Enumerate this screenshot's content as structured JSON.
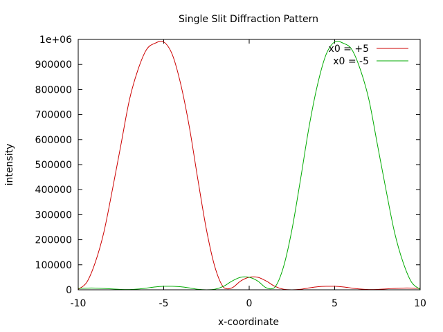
{
  "chart_data": {
    "type": "line",
    "title": "Single Slit Diffraction Pattern",
    "xlabel": "x-coordinate",
    "ylabel": "intensity",
    "xlim": [
      -10,
      10
    ],
    "ylim": [
      0,
      1000000
    ],
    "x_ticks": [
      -10,
      -5,
      0,
      5,
      10
    ],
    "y_ticks": [
      0,
      100000,
      200000,
      300000,
      400000,
      500000,
      600000,
      700000,
      800000,
      900000,
      1000000
    ],
    "x_tick_labels": [
      "-10",
      "-5",
      "0",
      "5",
      "10"
    ],
    "y_tick_labels": [
      "0",
      "100000",
      "200000",
      "300000",
      "400000",
      "500000",
      "600000",
      "700000",
      "800000",
      "900000",
      "1e+06"
    ],
    "grid": false,
    "legend_position": "top-right",
    "x": [
      -10,
      -9.5,
      -9,
      -8.5,
      -8,
      -7.5,
      -7,
      -6.5,
      -6,
      -5.5,
      -5,
      -4.5,
      -4,
      -3.5,
      -3,
      -2.5,
      -2,
      -1.5,
      -1,
      -0.5,
      0,
      0.5,
      1,
      1.5,
      2,
      2.5,
      3,
      3.5,
      4,
      4.5,
      5,
      5.5,
      6,
      6.5,
      7,
      7.5,
      8,
      8.5,
      9,
      9.5,
      10
    ],
    "series": [
      {
        "name": "x0 = +5",
        "color": "#cc0000",
        "values": [
          2000,
          30000,
          110000,
          230000,
          400000,
          580000,
          760000,
          880000,
          960000,
          985000,
          990000,
          940000,
          820000,
          650000,
          440000,
          240000,
          90000,
          10000,
          8000,
          35000,
          50000,
          50000,
          35000,
          14000,
          2500,
          0,
          2000,
          7500,
          12000,
          14000,
          14000,
          11500,
          7000,
          3000,
          1000,
          1500,
          3500,
          5500,
          7000,
          7000,
          6000
        ]
      },
      {
        "name": "x0 = -5",
        "color": "#00aa00",
        "values": [
          6000,
          7000,
          7000,
          5500,
          3500,
          1500,
          1000,
          3000,
          7000,
          11500,
          14000,
          14000,
          12000,
          7500,
          2000,
          0,
          2500,
          14000,
          35000,
          50000,
          50000,
          35000,
          8000,
          10000,
          90000,
          240000,
          440000,
          650000,
          820000,
          940000,
          990000,
          985000,
          960000,
          880000,
          760000,
          580000,
          400000,
          230000,
          110000,
          30000,
          2000
        ]
      }
    ]
  }
}
